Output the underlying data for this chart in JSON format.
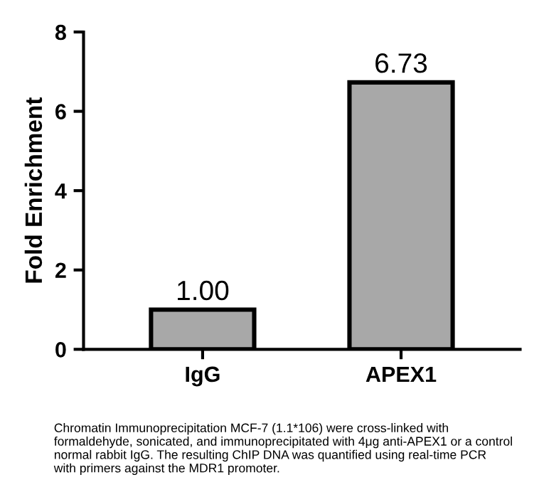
{
  "chart_data": {
    "type": "bar",
    "ylabel": "Fold Enrichment",
    "categories": [
      "IgG",
      "APEX1"
    ],
    "values": [
      1.0,
      6.73
    ],
    "value_labels": [
      "1.00",
      "6.73"
    ],
    "color": "#a8a8a8",
    "ylim": [
      0,
      8
    ],
    "yticks": [
      0,
      2,
      4,
      6,
      8
    ],
    "grid": false,
    "legend": false,
    "annotations": [
      "Chromatin Immunoprecipitation MCF-7 (1.1*106) were cross-linked with\nformaldehyde, sonicated, and immunoprecipitated with 4μg anti-APEX1 or a control\nnormal rabbit IgG. The resulting ChIP DNA was quantified using real-time PCR\nwith primers against the MDR1 promoter."
    ]
  }
}
